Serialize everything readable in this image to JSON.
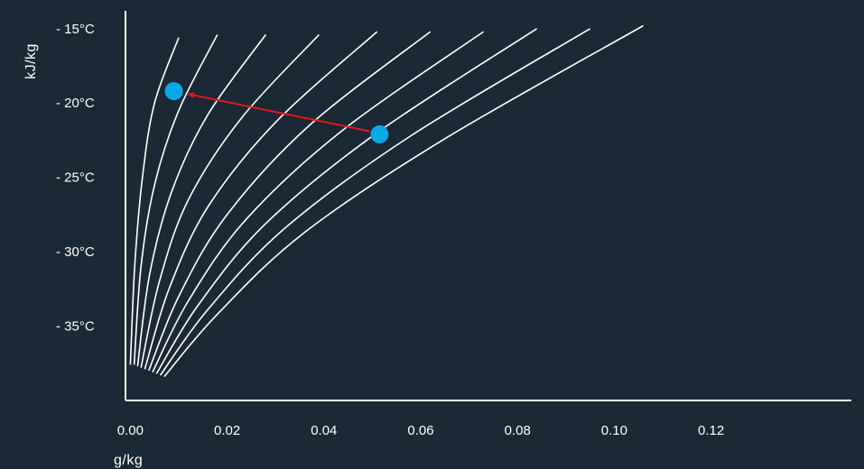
{
  "colors": {
    "background": "#1b2835",
    "axis": "#ffffff",
    "curve": "#ffffff",
    "point": "#08a9e6",
    "arrow": "#e01b1b"
  },
  "chart_data": {
    "type": "line",
    "title": "",
    "xlabel": "g/kg",
    "ylabel": "kJ/kg",
    "xlim": [
      -0.001,
      0.149
    ],
    "ylim": [
      -40.0,
      -13.8
    ],
    "xticks": [
      0.0,
      0.02,
      0.04,
      0.06,
      0.08,
      0.1,
      0.12
    ],
    "xtick_labels": [
      "0.00",
      "0.02",
      "0.04",
      "0.06",
      "0.08",
      "0.10",
      "0.12"
    ],
    "yticks": [
      -15,
      -20,
      -25,
      -30,
      -35
    ],
    "ytick_labels": [
      "- 15°C",
      "- 20°C",
      "- 25°C",
      "- 30°C",
      "- 35°C"
    ],
    "grid": false,
    "legend": "none",
    "series": [
      {
        "values": [
          [
            0.0,
            -37.6
          ],
          [
            0.0009,
            -31.0
          ],
          [
            0.0025,
            -25.0
          ],
          [
            0.005,
            -20.0
          ],
          [
            0.01,
            -15.6
          ]
        ]
      },
      {
        "values": [
          [
            0.0008,
            -37.6
          ],
          [
            0.0022,
            -31.0
          ],
          [
            0.005,
            -25.5
          ],
          [
            0.01,
            -20.5
          ],
          [
            0.018,
            -15.4
          ]
        ]
      },
      {
        "values": [
          [
            0.0015,
            -37.7
          ],
          [
            0.004,
            -31.5
          ],
          [
            0.0085,
            -26.0
          ],
          [
            0.016,
            -20.8
          ],
          [
            0.028,
            -15.4
          ]
        ]
      },
      {
        "values": [
          [
            0.0022,
            -37.8
          ],
          [
            0.006,
            -32.0
          ],
          [
            0.012,
            -26.5
          ],
          [
            0.023,
            -21.0
          ],
          [
            0.039,
            -15.4
          ]
        ]
      },
      {
        "values": [
          [
            0.003,
            -37.9
          ],
          [
            0.008,
            -32.5
          ],
          [
            0.016,
            -27.0
          ],
          [
            0.03,
            -21.3
          ],
          [
            0.051,
            -15.2
          ]
        ]
      },
      {
        "values": [
          [
            0.0038,
            -38.0
          ],
          [
            0.01,
            -33.0
          ],
          [
            0.02,
            -27.5
          ],
          [
            0.037,
            -21.5
          ],
          [
            0.062,
            -15.2
          ]
        ]
      },
      {
        "values": [
          [
            0.0046,
            -38.1
          ],
          [
            0.012,
            -33.3
          ],
          [
            0.024,
            -27.8
          ],
          [
            0.044,
            -21.8
          ],
          [
            0.073,
            -15.2
          ]
        ]
      },
      {
        "values": [
          [
            0.0054,
            -38.2
          ],
          [
            0.014,
            -33.6
          ],
          [
            0.028,
            -28.1
          ],
          [
            0.051,
            -22.0
          ],
          [
            0.084,
            -15.0
          ]
        ]
      },
      {
        "values": [
          [
            0.0062,
            -38.3
          ],
          [
            0.016,
            -33.9
          ],
          [
            0.032,
            -28.4
          ],
          [
            0.058,
            -22.2
          ],
          [
            0.095,
            -15.0
          ]
        ]
      },
      {
        "values": [
          [
            0.007,
            -38.4
          ],
          [
            0.018,
            -34.2
          ],
          [
            0.036,
            -28.7
          ],
          [
            0.065,
            -22.4
          ],
          [
            0.106,
            -14.8
          ]
        ]
      }
    ],
    "points": [
      {
        "x": 0.009,
        "y": -19.2
      },
      {
        "x": 0.0515,
        "y": -22.1
      }
    ],
    "arrow": {
      "from": [
        0.0495,
        -21.9
      ],
      "to": [
        0.012,
        -19.4
      ]
    }
  }
}
